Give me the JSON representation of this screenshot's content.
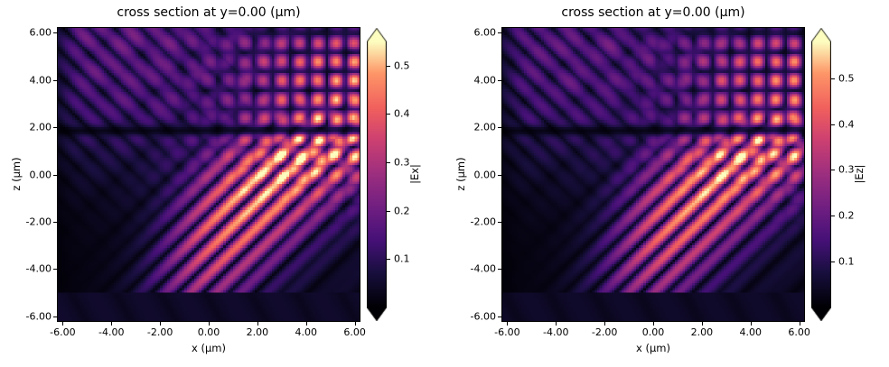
{
  "chart_data": [
    {
      "type": "heatmap",
      "title": "cross section at y=0.00 (μm)",
      "xlabel": "x (μm)",
      "ylabel": "z (μm)",
      "xlim": [
        -6.2,
        6.2
      ],
      "ylim": [
        -6.2,
        6.2
      ],
      "grid": false,
      "xticks": {
        "values": [
          -6,
          -4,
          -2,
          0,
          2,
          4,
          6
        ],
        "labels": [
          "-6.00",
          "-4.00",
          "-2.00",
          "0.00",
          "2.00",
          "4.00",
          "6.00"
        ]
      },
      "yticks": {
        "values": [
          -6,
          -4,
          -2,
          0,
          2,
          4,
          6
        ],
        "labels": [
          "-6.00",
          "-4.00",
          "-2.00",
          "0.00",
          "2.00",
          "4.00",
          "6.00"
        ]
      },
      "colormap": "magma",
      "colormap_stops": [
        [
          0,
          "#000004"
        ],
        [
          0.13,
          "#180f3e"
        ],
        [
          0.25,
          "#451077"
        ],
        [
          0.38,
          "#721f81"
        ],
        [
          0.5,
          "#9c2e7f"
        ],
        [
          0.63,
          "#cd4071"
        ],
        [
          0.75,
          "#f1605d"
        ],
        [
          0.88,
          "#fd9567"
        ],
        [
          1,
          "#fcfdbf"
        ]
      ],
      "colorbar": {
        "label": "|Ex|",
        "vmin": 0,
        "vmax": 0.55,
        "ticks": [
          0.1,
          0.2,
          0.3,
          0.4,
          0.5
        ],
        "tick_labels": [
          "0.1",
          "0.2",
          "0.3",
          "0.4",
          "0.5"
        ],
        "extend": "both"
      },
      "pattern_description": "FDTD field magnitude |Ex|: bright standing-wave checkerboard in the upper-right quadrant, bright diagonal interference fringes running toward the lower right, dark horizontal waveguide line near z=1.9, dark substrate band below z=-5, faint fringes on the left side",
      "field_params": {
        "grid_nx": 124,
        "grid_nz": 124,
        "phase": 0,
        "k_diag": 2.96,
        "k_cb": 4.2,
        "waveguide_z": 1.85,
        "substrate_top": -4.95,
        "clip": 0.55
      }
    },
    {
      "type": "heatmap",
      "title": "cross section at y=0.00 (μm)",
      "xlabel": "x (μm)",
      "ylabel": "z (μm)",
      "xlim": [
        -6.2,
        6.2
      ],
      "ylim": [
        -6.2,
        6.2
      ],
      "grid": false,
      "xticks": {
        "values": [
          -6,
          -4,
          -2,
          0,
          2,
          4,
          6
        ],
        "labels": [
          "-6.00",
          "-4.00",
          "-2.00",
          "0.00",
          "2.00",
          "4.00",
          "6.00"
        ]
      },
      "yticks": {
        "values": [
          -6,
          -4,
          -2,
          0,
          2,
          4,
          6
        ],
        "labels": [
          "-6.00",
          "-4.00",
          "-2.00",
          "0.00",
          "2.00",
          "4.00",
          "6.00"
        ]
      },
      "colormap": "magma",
      "colormap_stops": [
        [
          0,
          "#000004"
        ],
        [
          0.13,
          "#180f3e"
        ],
        [
          0.25,
          "#451077"
        ],
        [
          0.38,
          "#721f81"
        ],
        [
          0.5,
          "#9c2e7f"
        ],
        [
          0.63,
          "#cd4071"
        ],
        [
          0.75,
          "#f1605d"
        ],
        [
          0.88,
          "#fd9567"
        ],
        [
          1,
          "#fcfdbf"
        ]
      ],
      "colorbar": {
        "label": "|Ez|",
        "vmin": 0,
        "vmax": 0.58,
        "ticks": [
          0.1,
          0.2,
          0.3,
          0.4,
          0.5
        ],
        "tick_labels": [
          "0.1",
          "0.2",
          "0.3",
          "0.4",
          "0.5"
        ],
        "extend": "both"
      },
      "pattern_description": "FDTD field magnitude |Ez|: same scene as left panel with slightly shifted interference phase; bright checkerboard upper right, diagonal fringes lower right, dark waveguide line near z=1.9, dark substrate band below z=-5",
      "field_params": {
        "grid_nx": 124,
        "grid_nz": 124,
        "phase": 0.8,
        "k_diag": 2.96,
        "k_cb": 4.2,
        "waveguide_z": 1.85,
        "substrate_top": -4.95,
        "clip": 0.58
      }
    }
  ]
}
